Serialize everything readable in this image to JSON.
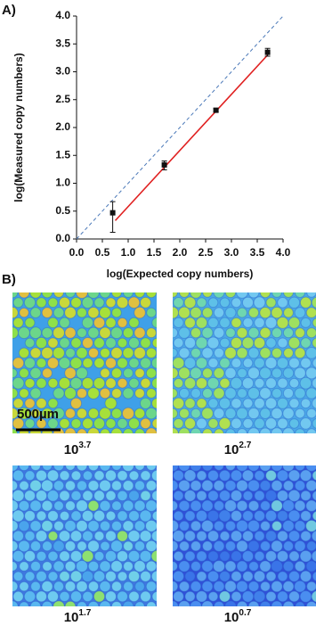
{
  "chart_data": {
    "type": "scatter",
    "panel_label": "A)",
    "xlabel": "log(Expected copy numbers)",
    "ylabel": "log(Measured copy numbers)",
    "xlim": [
      0,
      4
    ],
    "ylim": [
      0,
      4
    ],
    "xticks": [
      {
        "value": 0,
        "label": "0.0"
      },
      {
        "value": 0.5,
        "label": "0.5"
      },
      {
        "value": 1,
        "label": "1.0"
      },
      {
        "value": 1.5,
        "label": "1.5"
      },
      {
        "value": 2,
        "label": "2.0"
      },
      {
        "value": 2.5,
        "label": "2.5"
      },
      {
        "value": 3,
        "label": "3.0"
      },
      {
        "value": 3.5,
        "label": "3.5"
      },
      {
        "value": 4,
        "label": "4.0"
      }
    ],
    "yticks": [
      {
        "value": 0,
        "label": "0.0"
      },
      {
        "value": 0.5,
        "label": "0.5"
      },
      {
        "value": 1,
        "label": "1.0"
      },
      {
        "value": 1.5,
        "label": "1.5"
      },
      {
        "value": 2,
        "label": "2.0"
      },
      {
        "value": 2.5,
        "label": "2.5"
      },
      {
        "value": 3,
        "label": "3.0"
      },
      {
        "value": 3.5,
        "label": "3.5"
      },
      {
        "value": 4,
        "label": "4.0"
      }
    ],
    "series": [
      {
        "color": "#111111",
        "x": [
          0.7,
          1.7,
          2.7,
          3.7
        ],
        "values": [
          0.47,
          1.33,
          2.31,
          3.35
        ],
        "yerr_minus": [
          0.35,
          0.09,
          0.03,
          0.07
        ],
        "yerr_plus": [
          0.2,
          0.07,
          0.03,
          0.07
        ]
      }
    ],
    "fit": {
      "color": "#e02020",
      "x": [
        0.75,
        3.7
      ],
      "y": [
        0.33,
        3.3
      ]
    },
    "diagonal": true,
    "diagonal_color": "#4a78b8"
  },
  "images_panel": {
    "panel_label": "B)",
    "scale_bar": "500µm",
    "images": [
      {
        "base": "10",
        "exponent": "3.7"
      },
      {
        "base": "10",
        "exponent": "2.7"
      },
      {
        "base": "10",
        "exponent": "1.7"
      },
      {
        "base": "10",
        "exponent": "0.7"
      }
    ]
  }
}
